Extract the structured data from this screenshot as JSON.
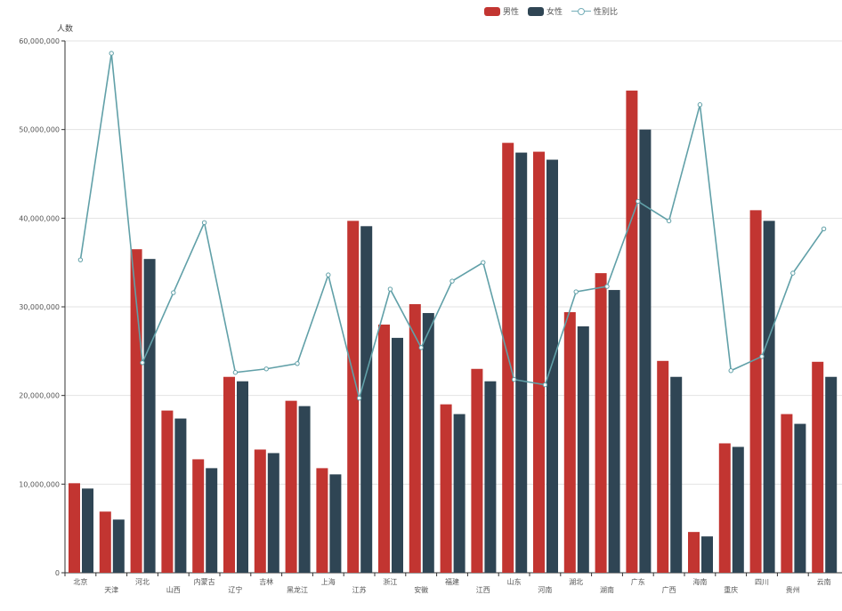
{
  "chart_data": {
    "type": "bar",
    "ylabel": "人数",
    "ylim": [
      0,
      60000000
    ],
    "yticks": [
      "0",
      "10,000,000",
      "20,000,000",
      "30,000,000",
      "40,000,000",
      "50,000,000",
      "60,000,000"
    ],
    "categories": [
      "北京",
      "天津",
      "河北",
      "山西",
      "内蒙古",
      "辽宁",
      "吉林",
      "黑龙江",
      "上海",
      "江苏",
      "浙江",
      "安徽",
      "福建",
      "江西",
      "山东",
      "河南",
      "湖北",
      "湖南",
      "广东",
      "广西",
      "海南",
      "重庆",
      "四川",
      "贵州",
      "云南"
    ],
    "series": [
      {
        "name": "男性",
        "type": "bar",
        "color": "#c23531",
        "values": [
          10100000,
          6900000,
          36500000,
          18300000,
          12800000,
          22100000,
          13900000,
          19400000,
          11800000,
          39700000,
          28000000,
          30300000,
          19000000,
          23000000,
          48500000,
          47500000,
          29400000,
          33800000,
          54400000,
          23900000,
          4600000,
          14600000,
          40900000,
          17900000,
          23800000
        ]
      },
      {
        "name": "女性",
        "type": "bar",
        "color": "#2f4554",
        "values": [
          9500000,
          6000000,
          35400000,
          17400000,
          11800000,
          21600000,
          13500000,
          18800000,
          11100000,
          39100000,
          26500000,
          29300000,
          17900000,
          21600000,
          47400000,
          46600000,
          27800000,
          31900000,
          50000000,
          22100000,
          4100000,
          14200000,
          39700000,
          16800000,
          22100000
        ]
      },
      {
        "name": "性别比",
        "type": "line",
        "color": "#61a0a8",
        "values": [
          35300000,
          58600000,
          23700000,
          31600000,
          39500000,
          22600000,
          23000000,
          23600000,
          33600000,
          19700000,
          32000000,
          25400000,
          32900000,
          35000000,
          21800000,
          21200000,
          31700000,
          32300000,
          41900000,
          39700000,
          52800000,
          22800000,
          24400000,
          33800000,
          38800000
        ]
      }
    ],
    "grid": true,
    "legend_position": "top-right"
  }
}
